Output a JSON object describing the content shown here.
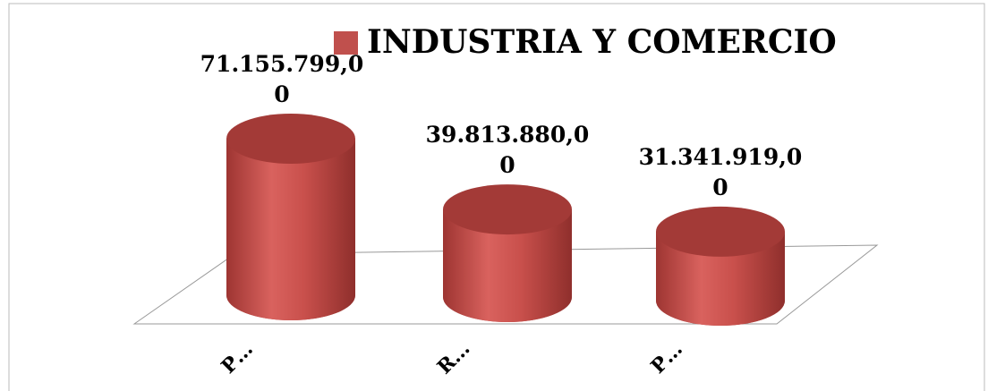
{
  "chart_data": {
    "type": "bar3d",
    "series": [
      {
        "name": "INDUSTRIA Y COMERCIO",
        "color": "#c0504d",
        "values": [
          71155799,
          39813880,
          31341919
        ],
        "value_labels": [
          "71.155.799,00",
          "39.813.880,00",
          "31.341.919,00"
        ]
      }
    ],
    "categories": [
      "P…",
      "R…",
      "P…"
    ]
  }
}
